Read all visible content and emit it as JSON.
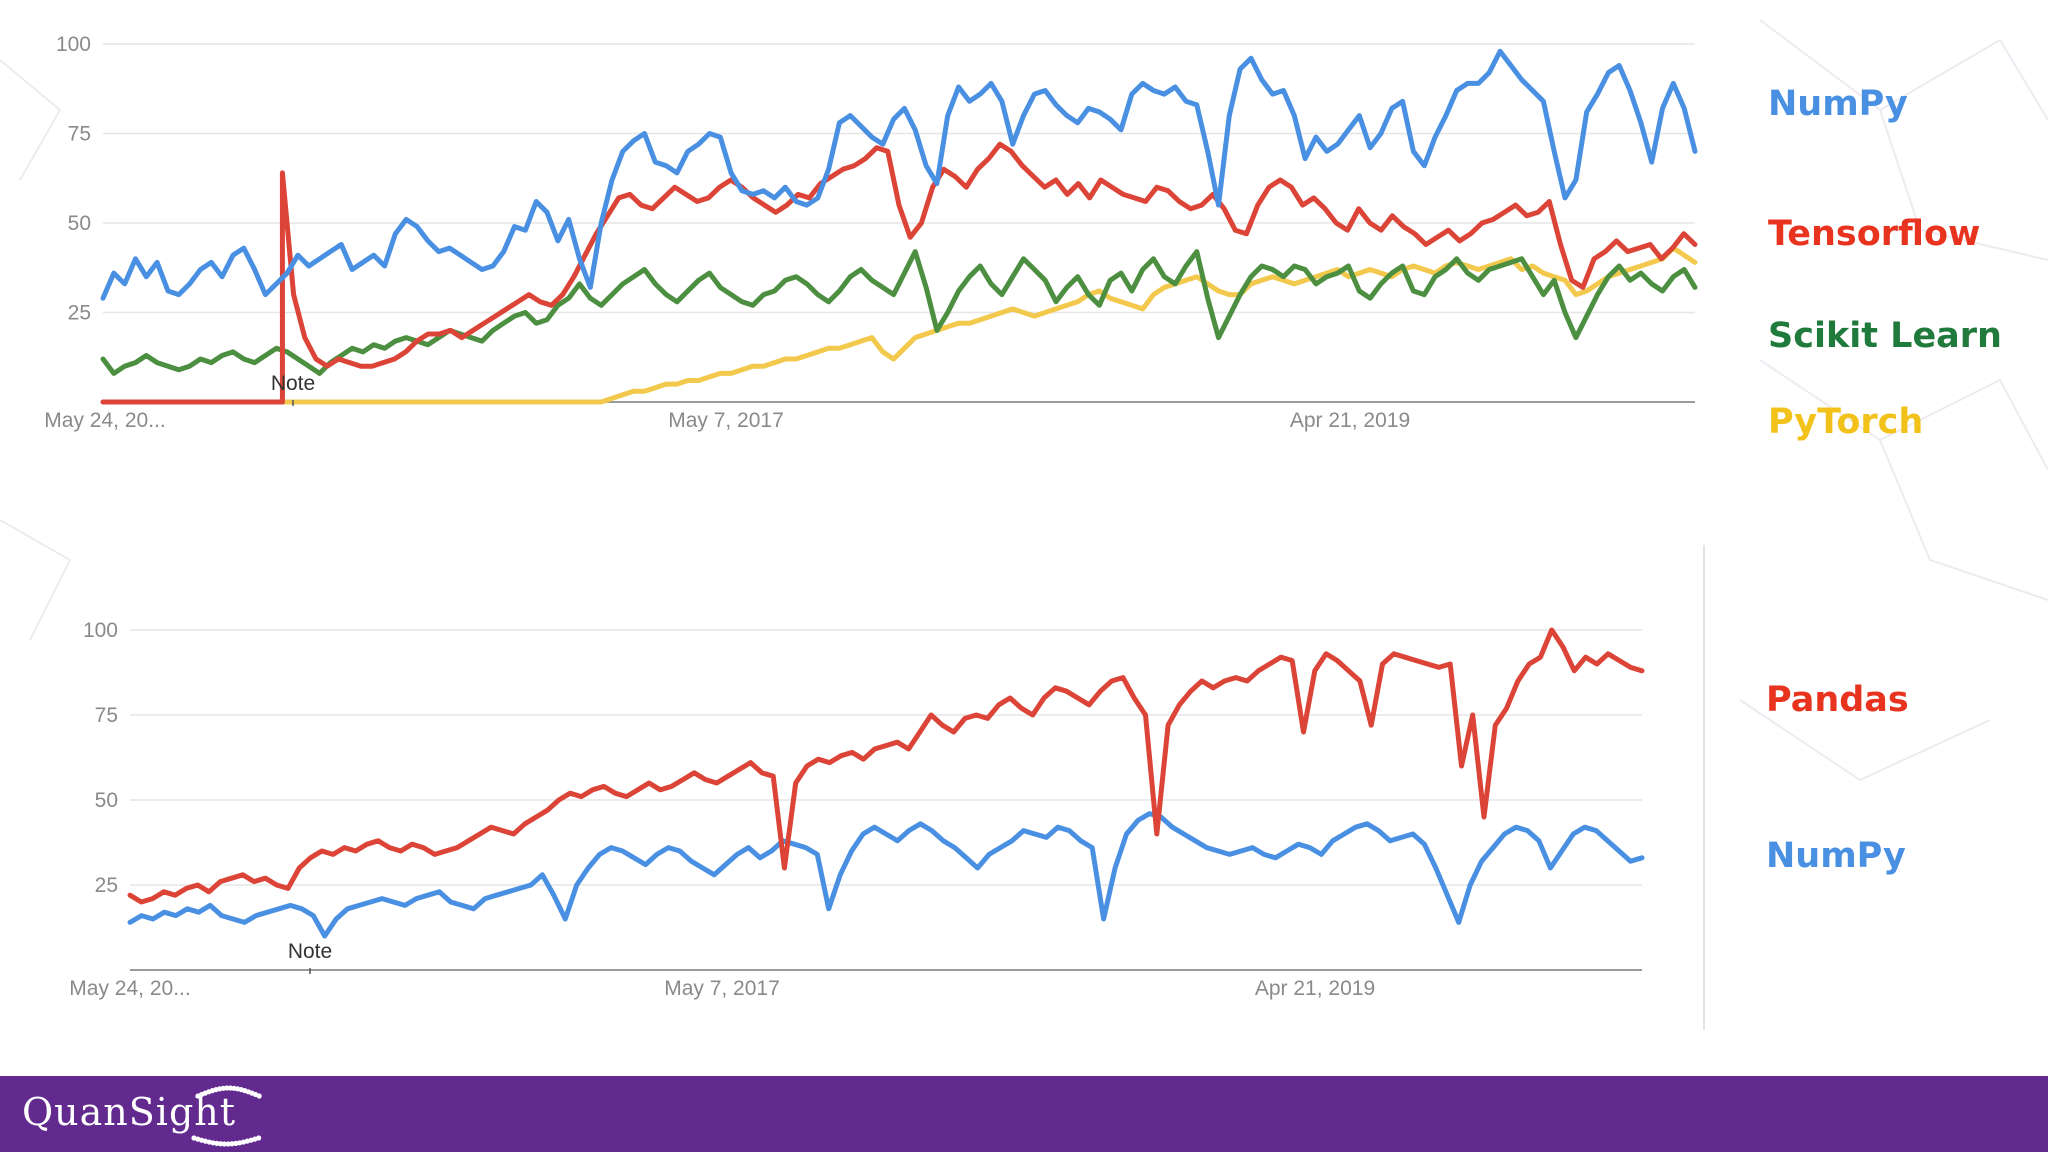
{
  "chart_data": [
    {
      "type": "line",
      "y_ticks": [
        100,
        75,
        50,
        25
      ],
      "ylim": [
        0,
        100
      ],
      "x_tick_labels": [
        "May 24, 20...",
        "May 7, 2017",
        "Apr 21, 2019"
      ],
      "annotation": "Note",
      "grid": true,
      "series": [
        {
          "name": "NumPy",
          "color": "#4a90e2",
          "values": [
            29,
            36,
            33,
            40,
            35,
            39,
            31,
            30,
            33,
            37,
            39,
            35,
            41,
            43,
            37,
            30,
            33,
            36,
            41,
            38,
            40,
            42,
            44,
            37,
            39,
            41,
            38,
            47,
            51,
            49,
            45,
            42,
            43,
            41,
            39,
            37,
            38,
            42,
            49,
            48,
            56,
            53,
            45,
            51,
            40,
            32,
            50,
            62,
            70,
            73,
            75,
            67,
            66,
            64,
            70,
            72,
            75,
            74,
            64,
            59,
            58,
            59,
            57,
            60,
            56,
            55,
            57,
            65,
            78,
            80,
            77,
            74,
            72,
            79,
            82,
            76,
            66,
            61,
            80,
            88,
            84,
            86,
            89,
            84,
            72,
            80,
            86,
            87,
            83,
            80,
            78,
            82,
            81,
            79,
            76,
            86,
            89,
            87,
            86,
            88,
            84,
            83,
            70,
            55,
            80,
            93,
            96,
            90,
            86,
            87,
            80,
            68,
            74,
            70,
            72,
            76,
            80,
            71,
            75,
            82,
            84,
            70,
            66,
            74,
            80,
            87,
            89,
            89,
            92,
            98,
            94,
            90,
            87,
            84,
            70,
            57,
            62,
            81,
            86,
            92,
            94,
            87,
            78,
            67,
            82,
            89,
            82,
            70
          ],
          "mode": "linear"
        },
        {
          "name": "Tensorflow",
          "color": "#db4437",
          "values": [
            0,
            0,
            0,
            0,
            0,
            0,
            0,
            0,
            0,
            0,
            0,
            0,
            0,
            0,
            0,
            0,
            64,
            30,
            18,
            12,
            10,
            12,
            11,
            10,
            10,
            11,
            12,
            14,
            17,
            19,
            19,
            20,
            18,
            20,
            22,
            24,
            26,
            28,
            30,
            28,
            27,
            30,
            35,
            41,
            47,
            52,
            57,
            58,
            55,
            54,
            57,
            60,
            58,
            56,
            57,
            60,
            62,
            60,
            57,
            55,
            53,
            55,
            58,
            57,
            61,
            63,
            65,
            66,
            68,
            71,
            70,
            55,
            46,
            50,
            60,
            65,
            63,
            60,
            65,
            68,
            72,
            70,
            66,
            63,
            60,
            62,
            58,
            61,
            57,
            62,
            60,
            58,
            57,
            56,
            60,
            59,
            56,
            54,
            55,
            58,
            54,
            48,
            47,
            55,
            60,
            62,
            60,
            55,
            57,
            54,
            50,
            48,
            54,
            50,
            48,
            52,
            49,
            47,
            44,
            46,
            48,
            45,
            47,
            50,
            51,
            53,
            55,
            52,
            53,
            56,
            44,
            34,
            32,
            40,
            42,
            45,
            42,
            43,
            44,
            40,
            43,
            47,
            44
          ],
          "mode": "spike"
        },
        {
          "name": "Scikit Learn",
          "color": "#4c8f41",
          "values": [
            12,
            8,
            10,
            11,
            13,
            11,
            10,
            9,
            10,
            12,
            11,
            13,
            14,
            12,
            11,
            13,
            15,
            14,
            12,
            10,
            8,
            11,
            13,
            15,
            14,
            16,
            15,
            17,
            18,
            17,
            16,
            18,
            20,
            19,
            18,
            17,
            20,
            22,
            24,
            25,
            22,
            23,
            27,
            29,
            33,
            29,
            27,
            30,
            33,
            35,
            37,
            33,
            30,
            28,
            31,
            34,
            36,
            32,
            30,
            28,
            27,
            30,
            31,
            34,
            35,
            33,
            30,
            28,
            31,
            35,
            37,
            34,
            32,
            30,
            36,
            42,
            32,
            20,
            25,
            31,
            35,
            38,
            33,
            30,
            35,
            40,
            37,
            34,
            28,
            32,
            35,
            30,
            27,
            34,
            36,
            31,
            37,
            40,
            35,
            33,
            38,
            42,
            29,
            18,
            24,
            30,
            35,
            38,
            37,
            35,
            38,
            37,
            33,
            35,
            36,
            38,
            31,
            29,
            33,
            36,
            38,
            31,
            30,
            35,
            37,
            40,
            36,
            34,
            37,
            38,
            39,
            40,
            35,
            30,
            34,
            25,
            18,
            24,
            30,
            35,
            38,
            34,
            36,
            33,
            31,
            35,
            37,
            32
          ],
          "mode": "linear"
        },
        {
          "name": "PyTorch",
          "color": "#f2c94c",
          "values": [
            0,
            0,
            0,
            0,
            0,
            0,
            0,
            0,
            0,
            0,
            0,
            0,
            0,
            0,
            0,
            0,
            0,
            0,
            0,
            0,
            0,
            0,
            0,
            0,
            0,
            0,
            0,
            0,
            0,
            0,
            0,
            0,
            0,
            0,
            0,
            0,
            0,
            0,
            0,
            0,
            0,
            0,
            0,
            0,
            0,
            0,
            0,
            1,
            2,
            3,
            3,
            4,
            5,
            5,
            6,
            6,
            7,
            8,
            8,
            9,
            10,
            10,
            11,
            12,
            12,
            13,
            14,
            15,
            15,
            16,
            17,
            18,
            14,
            12,
            15,
            18,
            19,
            20,
            21,
            22,
            22,
            23,
            24,
            25,
            26,
            25,
            24,
            25,
            26,
            27,
            28,
            30,
            31,
            29,
            28,
            27,
            26,
            30,
            32,
            33,
            34,
            35,
            33,
            31,
            30,
            30,
            33,
            34,
            35,
            34,
            33,
            34,
            35,
            36,
            37,
            35,
            36,
            37,
            36,
            35,
            37,
            38,
            37,
            36,
            38,
            39,
            38,
            37,
            38,
            39,
            40,
            37,
            38,
            36,
            35,
            34,
            30,
            31,
            33,
            35,
            36,
            37,
            38,
            39,
            40,
            43,
            41,
            39
          ],
          "mode": "linear"
        }
      ]
    },
    {
      "type": "line",
      "y_ticks": [
        100,
        75,
        50,
        25
      ],
      "ylim": [
        0,
        100
      ],
      "x_tick_labels": [
        "May 24, 20...",
        "May 7, 2017",
        "Apr 21, 2019"
      ],
      "annotation": "Note",
      "grid": true,
      "series": [
        {
          "name": "Pandas",
          "color": "#db4437",
          "values": [
            22,
            20,
            21,
            23,
            22,
            24,
            25,
            23,
            26,
            27,
            28,
            26,
            27,
            25,
            24,
            30,
            33,
            35,
            34,
            36,
            35,
            37,
            38,
            36,
            35,
            37,
            36,
            34,
            35,
            36,
            38,
            40,
            42,
            41,
            40,
            43,
            45,
            47,
            50,
            52,
            51,
            53,
            54,
            52,
            51,
            53,
            55,
            53,
            54,
            56,
            58,
            56,
            55,
            57,
            59,
            61,
            58,
            57,
            30,
            55,
            60,
            62,
            61,
            63,
            64,
            62,
            65,
            66,
            67,
            65,
            70,
            75,
            72,
            70,
            74,
            75,
            74,
            78,
            80,
            77,
            75,
            80,
            83,
            82,
            80,
            78,
            82,
            85,
            86,
            80,
            75,
            40,
            72,
            78,
            82,
            85,
            83,
            85,
            86,
            85,
            88,
            90,
            92,
            91,
            70,
            88,
            93,
            91,
            88,
            85,
            72,
            90,
            93,
            92,
            91,
            90,
            89,
            90,
            60,
            75,
            45,
            72,
            77,
            85,
            90,
            92,
            100,
            95,
            88,
            92,
            90,
            93,
            91,
            89,
            88
          ],
          "mode": "linear"
        },
        {
          "name": "NumPy",
          "color": "#4a90e2",
          "values": [
            14,
            16,
            15,
            17,
            16,
            18,
            17,
            19,
            16,
            15,
            14,
            16,
            17,
            18,
            19,
            18,
            16,
            10,
            15,
            18,
            19,
            20,
            21,
            20,
            19,
            21,
            22,
            23,
            20,
            19,
            18,
            21,
            22,
            23,
            24,
            25,
            28,
            22,
            15,
            25,
            30,
            34,
            36,
            35,
            33,
            31,
            34,
            36,
            35,
            32,
            30,
            28,
            31,
            34,
            36,
            33,
            35,
            38,
            37,
            36,
            34,
            18,
            28,
            35,
            40,
            42,
            40,
            38,
            41,
            43,
            41,
            38,
            36,
            33,
            30,
            34,
            36,
            38,
            41,
            40,
            39,
            42,
            41,
            38,
            36,
            15,
            30,
            40,
            44,
            46,
            45,
            42,
            40,
            38,
            36,
            35,
            34,
            35,
            36,
            34,
            33,
            35,
            37,
            36,
            34,
            38,
            40,
            42,
            43,
            41,
            38,
            39,
            40,
            37,
            30,
            22,
            14,
            25,
            32,
            36,
            40,
            42,
            41,
            38,
            30,
            35,
            40,
            42,
            41,
            38,
            35,
            32,
            33
          ],
          "mode": "linear"
        }
      ]
    }
  ],
  "legend_top": [
    {
      "label": "NumPy",
      "color": "#4a90e2"
    },
    {
      "label": "Tensorflow",
      "color": "#e8331f"
    },
    {
      "label": "Scikit Learn",
      "color": "#1f7a3c"
    },
    {
      "label": "PyTorch",
      "color": "#f2c21b"
    }
  ],
  "legend_bottom": [
    {
      "label": "Pandas",
      "color": "#e8331f"
    },
    {
      "label": "NumPy",
      "color": "#4a90e2"
    }
  ],
  "footer": {
    "logo_text": "QuanSight",
    "background": "#622a8f"
  }
}
